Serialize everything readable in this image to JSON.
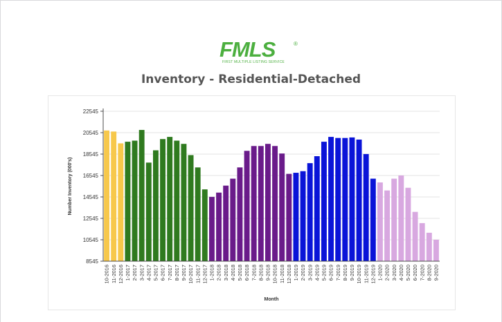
{
  "logo": {
    "text": "FMLS",
    "registered": "®",
    "subtext": "FIRST MULTIPLE LISTING SERVICE",
    "color": "#4caf3f"
  },
  "chart_data": {
    "type": "bar",
    "title": "Inventory - Residential-Detached",
    "xlabel": "Month",
    "ylabel": "Number Inventory (000's)",
    "ylim": [
      8545,
      22545
    ],
    "yticks": [
      8545,
      10545,
      12545,
      14545,
      16545,
      18545,
      20545,
      22545
    ],
    "grid": true,
    "legend": "none",
    "categories": [
      "10-2016",
      "11-2016",
      "12-2016",
      "1-2017",
      "2-2017",
      "3-2017",
      "4-2017",
      "5-2017",
      "6-2017",
      "7-2017",
      "8-2017",
      "9-2017",
      "10-2017",
      "11-2017",
      "12-2017",
      "1-2018",
      "2-2018",
      "3-2018",
      "4-2018",
      "5-2018",
      "6-2018",
      "7-2018",
      "8-2018",
      "9-2018",
      "10-2018",
      "11-2018",
      "12-2018",
      "1-2019",
      "2-2019",
      "3-2019",
      "4-2019",
      "5-2019",
      "6-2019",
      "7-2019",
      "8-2019",
      "9-2019",
      "10-2019",
      "11-2019",
      "12-2019",
      "1-2020",
      "2-2020",
      "3-2020",
      "4-2020",
      "5-2020",
      "6-2020",
      "7-2020",
      "8-2020",
      "9-2020"
    ],
    "values": [
      20750,
      20650,
      19550,
      19700,
      19800,
      20800,
      17750,
      18900,
      19950,
      20150,
      19800,
      19500,
      18450,
      17300,
      15250,
      14550,
      14950,
      15600,
      16250,
      17300,
      18850,
      19300,
      19300,
      19500,
      19300,
      18600,
      16700,
      16800,
      16950,
      17700,
      18350,
      19700,
      20150,
      20050,
      20050,
      20100,
      19900,
      18550,
      16250,
      15900,
      15150,
      16250,
      16550,
      15400,
      13150,
      12100,
      11200,
      10550
    ],
    "colors": [
      "#f7c84b",
      "#f7c84b",
      "#f7c84b",
      "#2f7a1f",
      "#2f7a1f",
      "#2f7a1f",
      "#2f7a1f",
      "#2f7a1f",
      "#2f7a1f",
      "#2f7a1f",
      "#2f7a1f",
      "#2f7a1f",
      "#2f7a1f",
      "#2f7a1f",
      "#2f7a1f",
      "#6a1b8a",
      "#6a1b8a",
      "#6a1b8a",
      "#6a1b8a",
      "#6a1b8a",
      "#6a1b8a",
      "#6a1b8a",
      "#6a1b8a",
      "#6a1b8a",
      "#6a1b8a",
      "#6a1b8a",
      "#6a1b8a",
      "#0a14d8",
      "#0a14d8",
      "#0a14d8",
      "#0a14d8",
      "#0a14d8",
      "#0a14d8",
      "#0a14d8",
      "#0a14d8",
      "#0a14d8",
      "#0a14d8",
      "#0a14d8",
      "#0a14d8",
      "#d8a8e0",
      "#d8a8e0",
      "#d8a8e0",
      "#d8a8e0",
      "#d8a8e0",
      "#d8a8e0",
      "#d8a8e0",
      "#d8a8e0",
      "#d8a8e0"
    ]
  }
}
